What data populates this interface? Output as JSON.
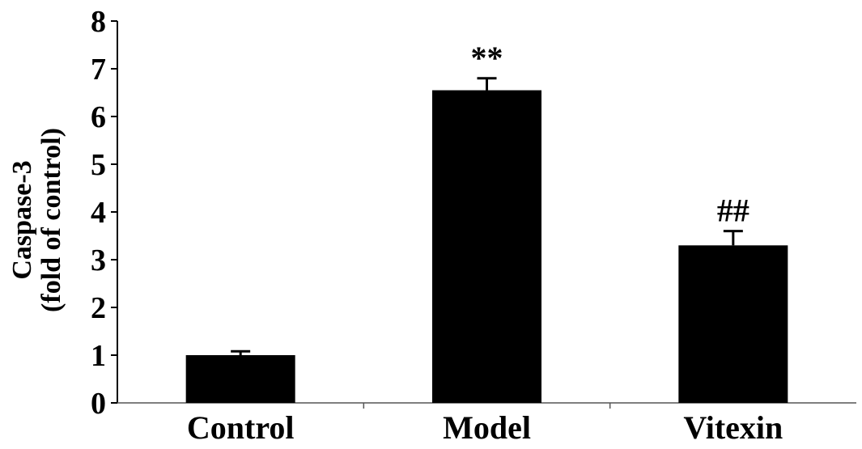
{
  "chart_data": {
    "type": "bar",
    "title": "",
    "xlabel": "",
    "ylabel_lines": [
      "Caspase-3",
      "(fold of control)"
    ],
    "categories": [
      "Control",
      "Model",
      "Vitexin"
    ],
    "values": [
      1.0,
      6.55,
      3.3
    ],
    "errors": [
      0.08,
      0.25,
      0.3
    ],
    "annotations": [
      "",
      "**",
      "##"
    ],
    "ylim": [
      0,
      8
    ],
    "yticks": [
      "0",
      "1",
      "2",
      "3",
      "4",
      "5",
      "6",
      "7",
      "8"
    ],
    "grid": false,
    "bar_color": "#000000"
  }
}
